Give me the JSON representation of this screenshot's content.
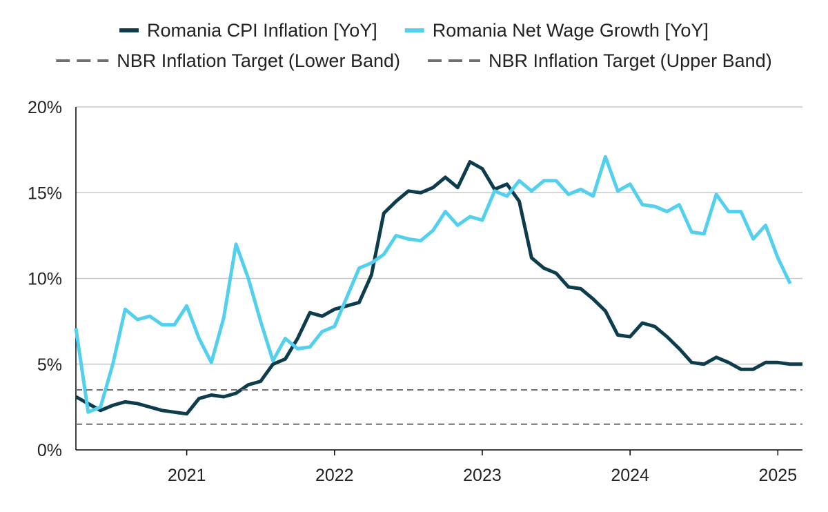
{
  "chart_data": {
    "type": "line",
    "title": "",
    "xlabel": "",
    "ylabel": "",
    "ylim": [
      0,
      20
    ],
    "yticks": [
      0,
      5,
      10,
      15,
      20
    ],
    "ytick_labels": [
      "0%",
      "5%",
      "10%",
      "15%",
      "20%"
    ],
    "xlim": [
      "2020-04",
      "2025-03"
    ],
    "xticks": [
      "2021-01",
      "2022-01",
      "2023-01",
      "2024-01",
      "2025-01"
    ],
    "xtick_labels": [
      "2021",
      "2022",
      "2023",
      "2024",
      "2025"
    ],
    "grid": "horizontal",
    "legend_position": "top",
    "series": [
      {
        "name": "Romania CPI Inflation [YoY]",
        "color": "#0d3d4d",
        "style": "solid",
        "x": [
          "2020-04",
          "2020-05",
          "2020-06",
          "2020-07",
          "2020-08",
          "2020-09",
          "2020-10",
          "2020-11",
          "2020-12",
          "2021-01",
          "2021-02",
          "2021-03",
          "2021-04",
          "2021-05",
          "2021-06",
          "2021-07",
          "2021-08",
          "2021-09",
          "2021-10",
          "2021-11",
          "2021-12",
          "2022-01",
          "2022-02",
          "2022-03",
          "2022-04",
          "2022-05",
          "2022-06",
          "2022-07",
          "2022-08",
          "2022-09",
          "2022-10",
          "2022-11",
          "2022-12",
          "2023-01",
          "2023-02",
          "2023-03",
          "2023-04",
          "2023-05",
          "2023-06",
          "2023-07",
          "2023-08",
          "2023-09",
          "2023-10",
          "2023-11",
          "2023-12",
          "2024-01",
          "2024-02",
          "2024-03",
          "2024-04",
          "2024-05",
          "2024-06",
          "2024-07",
          "2024-08",
          "2024-09",
          "2024-10",
          "2024-11",
          "2024-12",
          "2025-01",
          "2025-02",
          "2025-03"
        ],
        "values": [
          3.1,
          2.7,
          2.3,
          2.6,
          2.8,
          2.7,
          2.5,
          2.3,
          2.2,
          2.1,
          3.0,
          3.2,
          3.1,
          3.3,
          3.8,
          4.0,
          5.0,
          5.3,
          6.5,
          8.0,
          7.8,
          8.2,
          8.4,
          8.6,
          10.2,
          13.8,
          14.5,
          15.1,
          15.0,
          15.3,
          15.9,
          15.3,
          16.8,
          16.4,
          15.2,
          15.5,
          14.5,
          11.2,
          10.6,
          10.3,
          9.5,
          9.4,
          8.8,
          8.1,
          6.7,
          6.6,
          7.4,
          7.2,
          6.6,
          5.9,
          5.1,
          5.0,
          5.4,
          5.1,
          4.7,
          4.7,
          5.1,
          5.1,
          5.0,
          5.0
        ]
      },
      {
        "name": "Romania Net Wage Growth [YoY]",
        "color": "#54d0ef",
        "style": "solid",
        "x": [
          "2020-04",
          "2020-05",
          "2020-06",
          "2020-07",
          "2020-08",
          "2020-09",
          "2020-10",
          "2020-11",
          "2020-12",
          "2021-01",
          "2021-02",
          "2021-03",
          "2021-04",
          "2021-05",
          "2021-06",
          "2021-07",
          "2021-08",
          "2021-09",
          "2021-10",
          "2021-11",
          "2021-12",
          "2022-01",
          "2022-02",
          "2022-03",
          "2022-04",
          "2022-05",
          "2022-06",
          "2022-07",
          "2022-08",
          "2022-09",
          "2022-10",
          "2022-11",
          "2022-12",
          "2023-01",
          "2023-02",
          "2023-03",
          "2023-04",
          "2023-05",
          "2023-06",
          "2023-07",
          "2023-08",
          "2023-09",
          "2023-10",
          "2023-11",
          "2023-12",
          "2024-01",
          "2024-02",
          "2024-03",
          "2024-04",
          "2024-05",
          "2024-06",
          "2024-07",
          "2024-08",
          "2024-09",
          "2024-10",
          "2024-11",
          "2024-12",
          "2025-01",
          "2025-02"
        ],
        "values": [
          7.1,
          2.2,
          2.5,
          5.0,
          8.2,
          7.6,
          7.8,
          7.3,
          7.3,
          8.4,
          6.5,
          5.1,
          7.7,
          12.0,
          10.0,
          7.5,
          5.2,
          6.5,
          5.9,
          6.0,
          6.9,
          7.2,
          8.9,
          10.6,
          10.9,
          11.4,
          12.5,
          12.3,
          12.2,
          12.8,
          13.9,
          13.1,
          13.6,
          13.4,
          15.1,
          14.8,
          15.7,
          15.1,
          15.7,
          15.7,
          14.9,
          15.2,
          14.8,
          17.1,
          15.1,
          15.5,
          14.3,
          14.2,
          13.9,
          14.3,
          12.7,
          12.6,
          14.9,
          13.9,
          13.9,
          12.3,
          13.1,
          11.2,
          9.7
        ]
      },
      {
        "name": "NBR Inflation Target (Lower Band)",
        "color": "#6e6e6e",
        "style": "dashed",
        "x": [
          "2020-04",
          "2025-03"
        ],
        "values": [
          1.5,
          1.5
        ]
      },
      {
        "name": "NBR Inflation Target (Upper Band)",
        "color": "#6e6e6e",
        "style": "dashed",
        "x": [
          "2020-04",
          "2025-03"
        ],
        "values": [
          3.5,
          3.5
        ]
      }
    ]
  }
}
